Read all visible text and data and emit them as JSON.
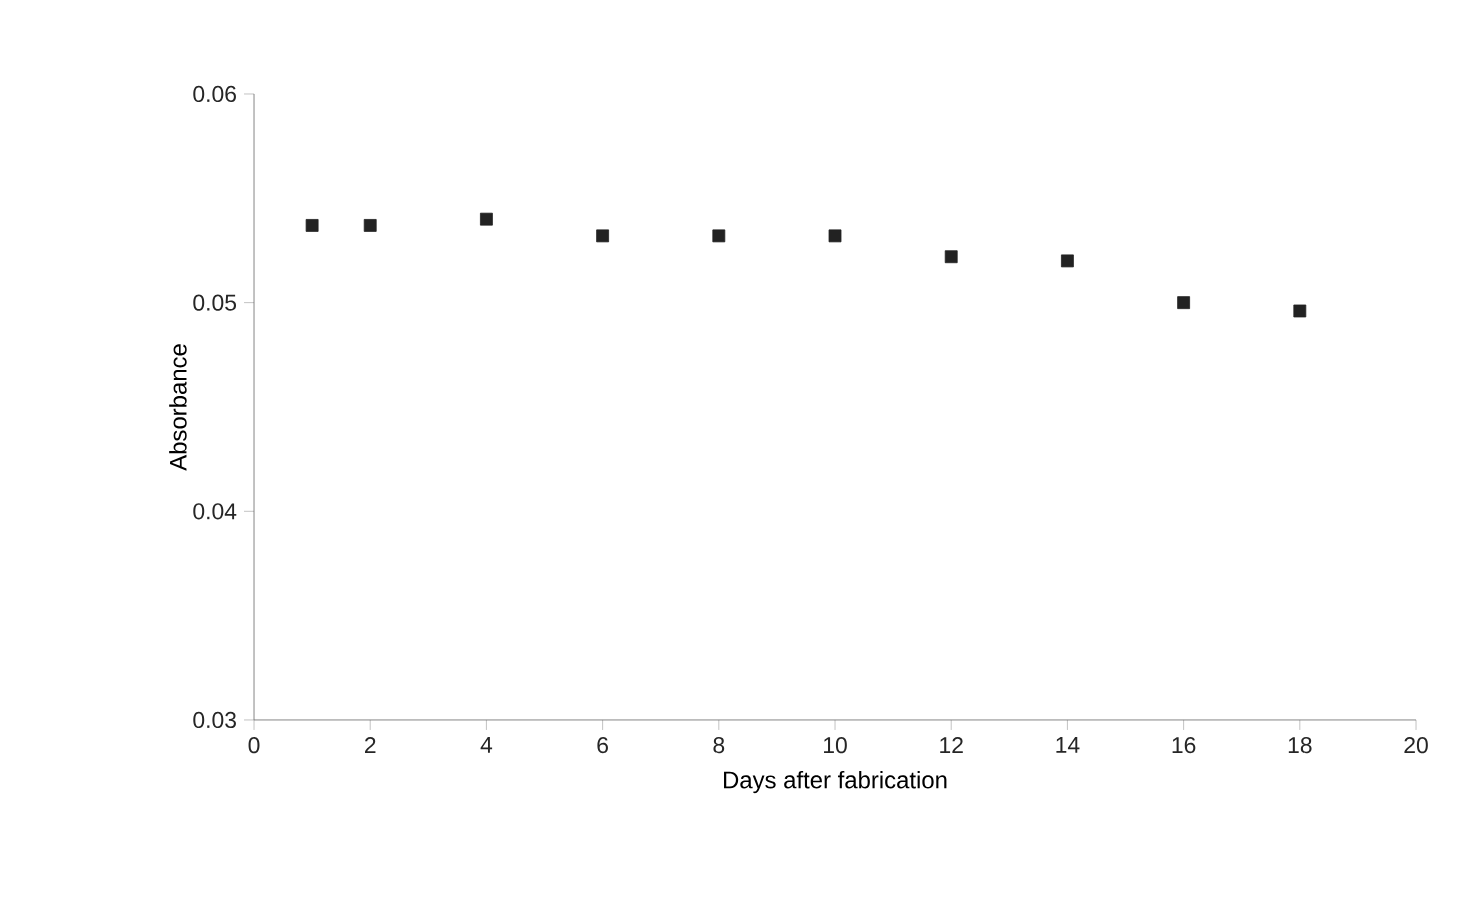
{
  "chart_data": {
    "type": "scatter",
    "xlabel": "Days after fabrication",
    "ylabel": "Absorbance",
    "x": [
      1,
      2,
      4,
      6,
      8,
      10,
      12,
      14,
      16,
      18
    ],
    "values": [
      0.0537,
      0.0537,
      0.054,
      0.0532,
      0.0532,
      0.0532,
      0.0522,
      0.052,
      0.05,
      0.0496
    ],
    "color": "#222222",
    "marker": "square",
    "grid": false,
    "xlim": [
      0,
      20
    ],
    "xticks": [
      0,
      2,
      4,
      6,
      8,
      10,
      12,
      14,
      16,
      18,
      20
    ],
    "ylim": [
      0.03,
      0.06
    ],
    "yticks": [
      0.03,
      0.04,
      0.05,
      0.06
    ]
  }
}
